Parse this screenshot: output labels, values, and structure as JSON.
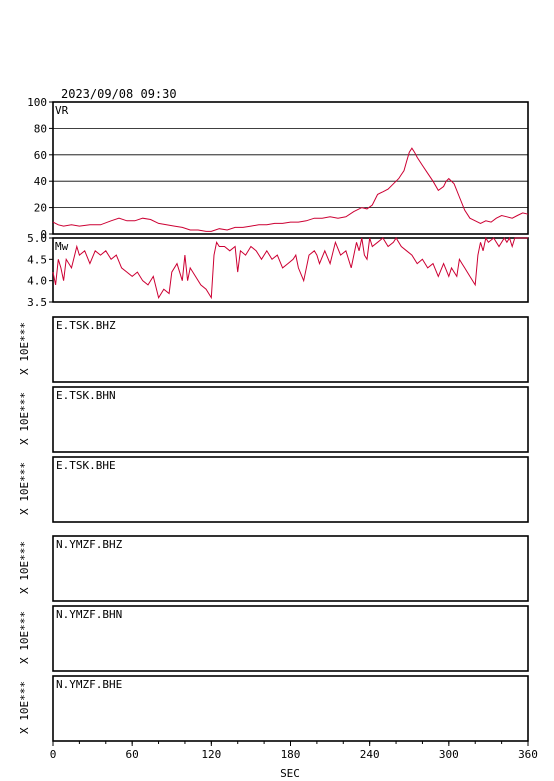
{
  "header": {
    "datetime": "2023/09/08  09:30"
  },
  "colors": {
    "trace": "#cc0033",
    "axes": "#000000"
  },
  "x_axis": {
    "label": "SEC",
    "ticks": [
      "0",
      "60",
      "120",
      "180",
      "240",
      "300",
      "360"
    ],
    "range": [
      0,
      360
    ]
  },
  "chart_data": [
    {
      "type": "line",
      "panel_label": "VR",
      "ylim": [
        0,
        100
      ],
      "ytick_labels": [
        "0",
        "20",
        "40",
        "60",
        "80",
        "100"
      ],
      "grid": true,
      "series": [
        {
          "x": [
            0,
            4,
            8,
            14,
            20,
            28,
            36,
            44,
            50,
            56,
            62,
            68,
            74,
            80,
            86,
            92,
            98,
            104,
            110,
            116,
            120,
            126,
            132,
            138,
            144,
            150,
            156,
            162,
            168,
            174,
            180,
            186,
            192,
            198,
            204,
            210,
            216,
            222,
            228,
            234,
            238,
            242,
            246,
            250,
            254,
            258,
            262,
            264,
            266,
            268,
            270,
            272,
            274,
            276,
            280,
            284,
            288,
            292,
            296,
            298,
            300,
            304,
            308,
            312,
            316,
            320,
            324,
            328,
            332,
            336,
            340,
            344,
            348,
            352,
            356,
            360
          ],
          "y": [
            9,
            7,
            6,
            7,
            6,
            7,
            7,
            10,
            12,
            10,
            10,
            12,
            11,
            8,
            7,
            6,
            5,
            3,
            3,
            2,
            2,
            4,
            3,
            5,
            5,
            6,
            7,
            7,
            8,
            8,
            9,
            9,
            10,
            12,
            12,
            13,
            12,
            13,
            17,
            20,
            19,
            22,
            30,
            32,
            34,
            38,
            42,
            45,
            48,
            55,
            62,
            65,
            62,
            58,
            52,
            46,
            40,
            33,
            36,
            40,
            42,
            38,
            28,
            18,
            12,
            10,
            8,
            10,
            9,
            12,
            14,
            13,
            12,
            14,
            16,
            15
          ]
        }
      ]
    },
    {
      "type": "line",
      "panel_label": "Mw",
      "ylim": [
        3.5,
        5.0
      ],
      "ytick_labels": [
        "3.5",
        "4.0",
        "4.5",
        "5.0"
      ],
      "grid": false,
      "series": [
        {
          "x": [
            0,
            2,
            4,
            6,
            8,
            10,
            14,
            18,
            20,
            24,
            28,
            32,
            36,
            40,
            44,
            48,
            52,
            56,
            60,
            64,
            68,
            72,
            76,
            80,
            84,
            88,
            90,
            94,
            98,
            100,
            102,
            104,
            108,
            112,
            116,
            120,
            122,
            124,
            126,
            130,
            134,
            138,
            140,
            142,
            146,
            150,
            154,
            158,
            162,
            166,
            170,
            174,
            178,
            182,
            184,
            186,
            190,
            194,
            198,
            200,
            202,
            206,
            210,
            214,
            218,
            222,
            226,
            230,
            232,
            234,
            236,
            238,
            240,
            242,
            246,
            250,
            254,
            258,
            260,
            264,
            268,
            272,
            276,
            280,
            284,
            288,
            292,
            296,
            300,
            302,
            304,
            306,
            308,
            310,
            312,
            316,
            320,
            322,
            324,
            326,
            328,
            330,
            334,
            338,
            342,
            344,
            346,
            348,
            350,
            354,
            358,
            360
          ],
          "y": [
            4.2,
            3.9,
            4.5,
            4.3,
            4.0,
            4.5,
            4.3,
            4.8,
            4.6,
            4.7,
            4.4,
            4.7,
            4.6,
            4.7,
            4.5,
            4.6,
            4.3,
            4.2,
            4.1,
            4.2,
            4.0,
            3.9,
            4.1,
            3.6,
            3.8,
            3.7,
            4.2,
            4.4,
            4.0,
            4.6,
            4.0,
            4.3,
            4.1,
            3.9,
            3.8,
            3.6,
            4.6,
            4.9,
            4.8,
            4.8,
            4.7,
            4.8,
            4.2,
            4.7,
            4.6,
            4.8,
            4.7,
            4.5,
            4.7,
            4.5,
            4.6,
            4.3,
            4.4,
            4.5,
            4.6,
            4.3,
            4.0,
            4.6,
            4.7,
            4.6,
            4.4,
            4.7,
            4.4,
            4.9,
            4.6,
            4.7,
            4.3,
            4.9,
            4.7,
            5.0,
            4.6,
            4.5,
            5.0,
            4.8,
            4.9,
            5.0,
            4.8,
            4.9,
            5.0,
            4.8,
            4.7,
            4.6,
            4.4,
            4.5,
            4.3,
            4.4,
            4.1,
            4.4,
            4.1,
            4.3,
            4.2,
            4.1,
            4.5,
            4.4,
            4.3,
            4.1,
            3.9,
            4.6,
            4.9,
            4.7,
            5.0,
            4.9,
            5.0,
            4.8,
            5.0,
            4.9,
            5.0,
            4.8,
            5.0,
            5.0,
            5.0,
            5.0
          ]
        }
      ]
    }
  ],
  "waveform_panels": [
    {
      "label": "E.TSK.BHZ",
      "scale": "X 10E***"
    },
    {
      "label": "E.TSK.BHN",
      "scale": "X 10E***"
    },
    {
      "label": "E.TSK.BHE",
      "scale": "X 10E***"
    },
    {
      "label": "N.YMZF.BHZ",
      "scale": "X 10E***"
    },
    {
      "label": "N.YMZF.BHN",
      "scale": "X 10E***"
    },
    {
      "label": "N.YMZF.BHE",
      "scale": "X 10E***"
    }
  ]
}
